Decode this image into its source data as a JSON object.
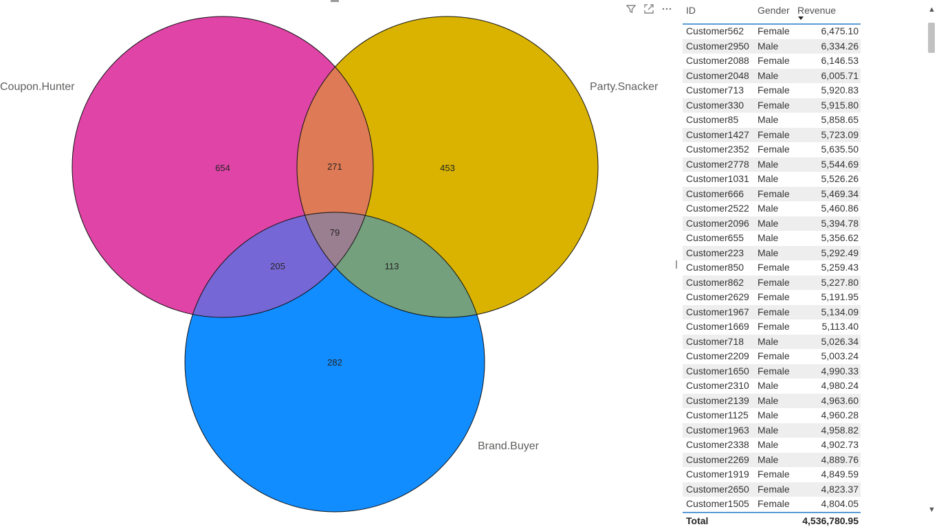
{
  "venn": {
    "sets": [
      {
        "name": "Coupon.Hunter",
        "color": "#E044A7"
      },
      {
        "name": "Party.Snacker",
        "color": "#D9B300"
      },
      {
        "name": "Brand.Buyer",
        "color": "#118DFF"
      }
    ],
    "regions": {
      "coupon_only": "654",
      "coupon_party": "271",
      "party_only": "453",
      "all_three": "79",
      "coupon_brand": "205",
      "party_brand": "113",
      "brand_only": "282"
    },
    "region_colors": {
      "coupon_party": "#DE7A55",
      "coupon_brand": "#7667D6",
      "party_brand": "#74A07E",
      "all_three": "#9A7F90"
    }
  },
  "visual_header": {
    "filter_icon": "filter-icon",
    "focus_icon": "focus-mode-icon",
    "more_icon": "more-options-icon"
  },
  "table": {
    "headers": {
      "id": "ID",
      "gender": "Gender",
      "revenue": "Revenue"
    },
    "rows": [
      {
        "id": "Customer562",
        "gender": "Female",
        "revenue": "6,475.10"
      },
      {
        "id": "Customer2950",
        "gender": "Male",
        "revenue": "6,334.26"
      },
      {
        "id": "Customer2088",
        "gender": "Female",
        "revenue": "6,146.53"
      },
      {
        "id": "Customer2048",
        "gender": "Male",
        "revenue": "6,005.71"
      },
      {
        "id": "Customer713",
        "gender": "Female",
        "revenue": "5,920.83"
      },
      {
        "id": "Customer330",
        "gender": "Female",
        "revenue": "5,915.80"
      },
      {
        "id": "Customer85",
        "gender": "Male",
        "revenue": "5,858.65"
      },
      {
        "id": "Customer1427",
        "gender": "Female",
        "revenue": "5,723.09"
      },
      {
        "id": "Customer2352",
        "gender": "Female",
        "revenue": "5,635.50"
      },
      {
        "id": "Customer2778",
        "gender": "Male",
        "revenue": "5,544.69"
      },
      {
        "id": "Customer1031",
        "gender": "Male",
        "revenue": "5,526.26"
      },
      {
        "id": "Customer666",
        "gender": "Female",
        "revenue": "5,469.34"
      },
      {
        "id": "Customer2522",
        "gender": "Male",
        "revenue": "5,460.86"
      },
      {
        "id": "Customer2096",
        "gender": "Male",
        "revenue": "5,394.78"
      },
      {
        "id": "Customer655",
        "gender": "Male",
        "revenue": "5,356.62"
      },
      {
        "id": "Customer223",
        "gender": "Male",
        "revenue": "5,292.49"
      },
      {
        "id": "Customer850",
        "gender": "Female",
        "revenue": "5,259.43"
      },
      {
        "id": "Customer862",
        "gender": "Female",
        "revenue": "5,227.80"
      },
      {
        "id": "Customer2629",
        "gender": "Female",
        "revenue": "5,191.95"
      },
      {
        "id": "Customer1967",
        "gender": "Female",
        "revenue": "5,134.09"
      },
      {
        "id": "Customer1669",
        "gender": "Female",
        "revenue": "5,113.40"
      },
      {
        "id": "Customer718",
        "gender": "Male",
        "revenue": "5,026.34"
      },
      {
        "id": "Customer2209",
        "gender": "Female",
        "revenue": "5,003.24"
      },
      {
        "id": "Customer1650",
        "gender": "Female",
        "revenue": "4,990.33"
      },
      {
        "id": "Customer2310",
        "gender": "Male",
        "revenue": "4,980.24"
      },
      {
        "id": "Customer2139",
        "gender": "Male",
        "revenue": "4,963.60"
      },
      {
        "id": "Customer1125",
        "gender": "Male",
        "revenue": "4,960.28"
      },
      {
        "id": "Customer1963",
        "gender": "Male",
        "revenue": "4,958.82"
      },
      {
        "id": "Customer2338",
        "gender": "Male",
        "revenue": "4,902.73"
      },
      {
        "id": "Customer2269",
        "gender": "Male",
        "revenue": "4,889.76"
      },
      {
        "id": "Customer1919",
        "gender": "Female",
        "revenue": "4,849.59"
      },
      {
        "id": "Customer2650",
        "gender": "Female",
        "revenue": "4,823.37"
      },
      {
        "id": "Customer1505",
        "gender": "Female",
        "revenue": "4,804.05"
      }
    ],
    "total": {
      "label": "Total",
      "revenue": "4,536,780.95"
    },
    "sort": {
      "column": "Revenue",
      "direction": "descending"
    }
  }
}
